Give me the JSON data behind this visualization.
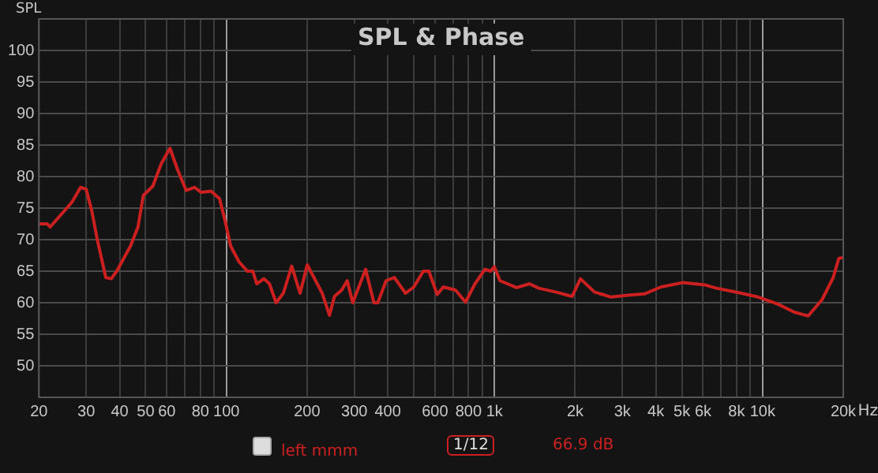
{
  "chart_data": {
    "type": "line",
    "title": "SPL & Phase",
    "ylabel": "SPL",
    "x": [
      20,
      21.5,
      22,
      25.4,
      26.6,
      28.6,
      30,
      31.5,
      33,
      35.5,
      37.2,
      39,
      43.9,
      46.8,
      49,
      53.2,
      57.1,
      61.6,
      65.9,
      70.8,
      76.1,
      80.5,
      87.7,
      94.3,
      98.9,
      103.7,
      111.4,
      119.7,
      125.5,
      129.8,
      138,
      144.8,
      153.3,
      163.1,
      175.3,
      188.3,
      200.3,
      212.1,
      227.8,
      242.4,
      253,
      269.2,
      282.3,
      296.1,
      330.6,
      355.1,
      367.1,
      394.3,
      423.5,
      465.8,
      500.4,
      542.8,
      569.3,
      611.5,
      644.5,
      715.9,
      780.1,
      846,
      921.7,
      966.7,
      999.6,
      1048,
      1209,
      1350,
      1464,
      1690,
      1949,
      2093,
      2358,
      2721,
      3141,
      3625,
      4183,
      5062,
      6125,
      6739,
      8153,
      9630,
      11380,
      13140,
      14800,
      16680,
      18350,
      19240,
      20000
    ],
    "series": [
      {
        "name": "left mmm",
        "color": "#cc2020",
        "values": [
          72.5,
          72.5,
          72,
          75,
          76,
          78.3,
          78,
          74.5,
          70,
          64,
          63.8,
          65,
          69,
          72,
          77,
          78.5,
          82,
          84.5,
          81,
          77.8,
          78.3,
          77.5,
          77.7,
          76.5,
          73,
          69,
          66.5,
          65,
          65,
          63,
          63.8,
          63,
          60,
          61.5,
          65.8,
          61.5,
          66,
          64,
          61.5,
          58,
          61,
          62,
          63.5,
          60,
          65.3,
          60,
          60,
          63.5,
          64,
          61.5,
          62.5,
          65,
          65,
          61.3,
          62.5,
          62,
          60.1,
          63,
          65.3,
          65,
          65.7,
          63.5,
          62.4,
          63,
          62.3,
          61.7,
          61,
          63.8,
          61.7,
          60.9,
          61.2,
          61.4,
          62.5,
          63.2,
          62.8,
          62.3,
          61.6,
          60.9,
          59.8,
          58.5,
          57.9,
          60.5,
          64,
          67,
          67.2
        ]
      }
    ],
    "log": "x",
    "xlim": [
      20,
      20000
    ],
    "xticks": [
      20,
      30,
      40,
      50,
      60,
      {
        "value": 70,
        "label": null
      },
      80,
      {
        "value": 90,
        "label": null
      },
      100,
      200,
      300,
      400,
      {
        "value": 500,
        "label": null
      },
      600,
      {
        "value": 700,
        "label": null
      },
      800,
      {
        "value": 900,
        "label": null
      },
      {
        "value": 1000,
        "label": "1k"
      },
      {
        "value": 2000,
        "label": "2k"
      },
      {
        "value": 3000,
        "label": "3k"
      },
      {
        "value": 4000,
        "label": "4k"
      },
      {
        "value": 5000,
        "label": "5k"
      },
      {
        "value": 6000,
        "label": "6k"
      },
      {
        "value": 7000,
        "label": null
      },
      {
        "value": 8000,
        "label": "8k"
      },
      {
        "value": 9000,
        "label": null
      },
      {
        "value": 10000,
        "label": "10k"
      },
      {
        "value": 20000,
        "label": "20k"
      }
    ],
    "xlabel": "Hz",
    "ylim": [
      45,
      105
    ],
    "yticks": [
      50,
      55,
      60,
      65,
      70,
      75,
      80,
      85,
      90,
      95,
      100
    ],
    "grid": true,
    "legend": "bottom",
    "marker": "none",
    "line_style": "solid",
    "annotations": [
      "1/12",
      "66.9 dB"
    ]
  }
}
